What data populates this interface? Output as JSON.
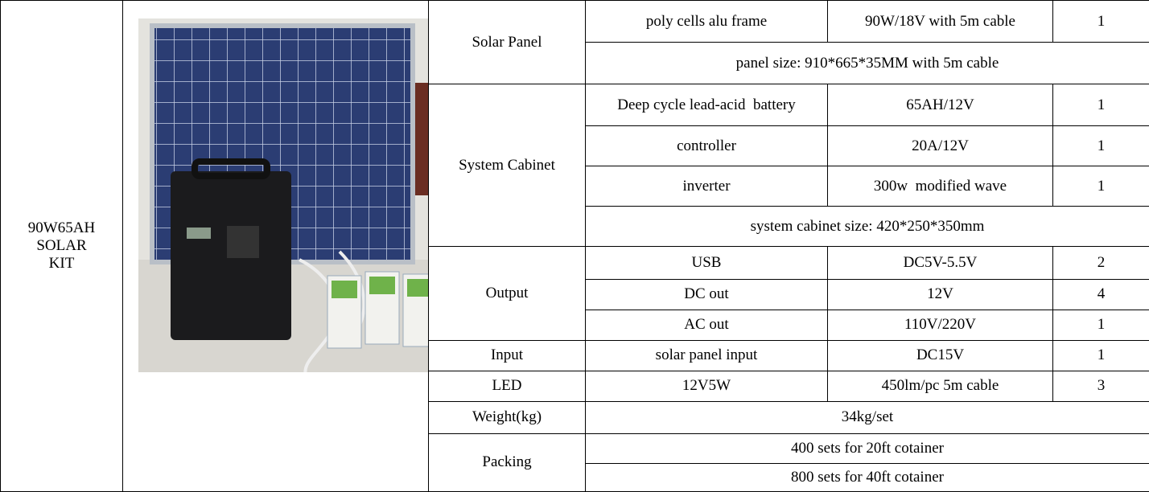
{
  "product": [
    "90W65AH",
    "SOLAR",
    "KIT"
  ],
  "table": {
    "rows": [
      [
        "Solar Panel",
        "poly cells alu frame",
        "90W/18V with 5m cable",
        "1"
      ],
      [
        "panel size: 910*665*35MM with 5m cable"
      ],
      [
        "System Cabinet",
        "Deep cycle lead-acid  battery",
        "65AH/12V",
        "1"
      ],
      [
        "controller",
        "20A/12V",
        "1"
      ],
      [
        "inverter",
        "300w  modified wave",
        "1"
      ],
      [
        "system cabinet size: 420*250*350mm"
      ],
      [
        "Output",
        "USB",
        "DC5V-5.5V",
        "2"
      ],
      [
        "DC out",
        "12V",
        "4"
      ],
      [
        "AC out",
        "110V/220V",
        "1"
      ],
      [
        "Input",
        "solar panel input",
        "DC15V",
        "1"
      ],
      [
        "LED",
        "12V5W",
        "450lm/pc 5m cable",
        "3"
      ],
      [
        "Weight(kg)",
        "34kg/set"
      ],
      [
        "Packing",
        "400 sets for 20ft cotainer"
      ],
      [
        "800 sets for 40ft cotainer"
      ]
    ]
  }
}
